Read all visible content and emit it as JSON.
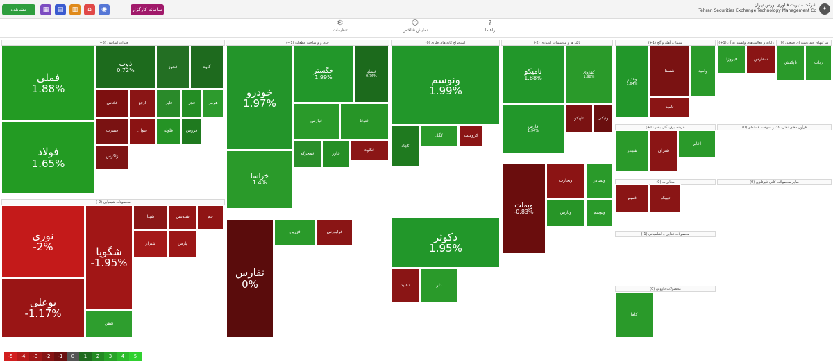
{
  "header": {
    "left_buttons": [
      {
        "label": "مشاهده فهرست",
        "color": "#2e9e3e"
      },
      {
        "label": "سامانه کارگزار",
        "color": "#a0196a"
      }
    ],
    "icons": [
      {
        "name": "grid-icon",
        "glyph": "▦",
        "color": "#7c4cc1"
      },
      {
        "name": "chart-icon",
        "glyph": "▤",
        "color": "#3b5bd0"
      },
      {
        "name": "list-icon",
        "glyph": "▥",
        "color": "#e08a1a"
      },
      {
        "name": "home-icon",
        "glyph": "⌂",
        "color": "#e04848"
      },
      {
        "name": "user-icon",
        "glyph": "◉",
        "color": "#5677d6"
      }
    ],
    "company_fa": "شرکت مدیریت فناوری بورس تهران",
    "company_en": "Tehran Securities Exchange Technology Management Co",
    "subnav": [
      {
        "label": "تنظیمات",
        "icon_name": "settings-icon",
        "glyph": "⚙"
      },
      {
        "label": "نمایش شاخص",
        "icon_name": "people-icon",
        "glyph": "☺"
      },
      {
        "label": "راهنما",
        "icon_name": "help-icon",
        "glyph": "?"
      }
    ]
  },
  "sectors": [
    {
      "name": "فلزات اساسی (5+)"
    },
    {
      "name": "محصولات شیمیایی (2-)"
    },
    {
      "name": "خودرو و ساخت قطعات (1+)"
    },
    {
      "name": "استخراج کانه های فلزی (0)"
    },
    {
      "name": "بانک ها و موسسات اعتباری (2-)"
    },
    {
      "name": "سیمان، آهک و گچ (1+)"
    },
    {
      "name": "رایانه و فعالیت‌های وابسته به آن (1+)"
    },
    {
      "name": "شرکتهای چند رشته ای صنعتی (0)"
    },
    {
      "name": "عرضه برق، گاز، بخار (1+)"
    },
    {
      "name": "فرآورده‌های نفتی، کک و سوخت هسته‌ای (0)"
    },
    {
      "name": "مخابرات (0)"
    },
    {
      "name": "محصولات غذایی و آشامیدنی (1-)"
    },
    {
      "name": "محصولات دارویی (0)"
    },
    {
      "name": "سایر محصولات کانی غیرفلزی (0)"
    }
  ],
  "tiles": [
    {
      "name": "فملی",
      "pct": "1.88%",
      "color": "#239b23"
    },
    {
      "name": "فولاد",
      "pct": "1.65%",
      "color": "#239b23"
    },
    {
      "name": "ذوب",
      "pct": "0.72%",
      "color": "#1d6b1d"
    },
    {
      "name": "فخوز",
      "pct": "",
      "color": "#236f23"
    },
    {
      "name": "کاوه",
      "pct": "",
      "color": "#1e6a1e"
    },
    {
      "name": "فخاس",
      "pct": "",
      "color": "#7d1010"
    },
    {
      "name": "ارفع",
      "pct": "",
      "color": "#8a1515"
    },
    {
      "name": "فایرا",
      "pct": "",
      "color": "#2a8a2a"
    },
    {
      "name": "فجر",
      "pct": "",
      "color": "#248d24"
    },
    {
      "name": "هرمز",
      "pct": "",
      "color": "#2d9b2d"
    },
    {
      "name": "فسرب",
      "pct": "",
      "color": "#7a1212"
    },
    {
      "name": "فنوال",
      "pct": "",
      "color": "#8a1313"
    },
    {
      "name": "فلوله",
      "pct": "",
      "color": "#259325"
    },
    {
      "name": "فروس",
      "pct": "",
      "color": "#1f7a1f"
    },
    {
      "name": "زاگرس",
      "pct": "",
      "color": "#7e1414"
    },
    {
      "name": "نوری",
      "pct": "-2%",
      "color": "#c41a1a"
    },
    {
      "name": "بوعلی",
      "pct": "-1.17%",
      "color": "#9a1515"
    },
    {
      "name": "شگویا",
      "pct": "-1.95%",
      "color": "#a11616"
    },
    {
      "name": "شپنا",
      "pct": "",
      "color": "#8a1717"
    },
    {
      "name": "شپدیس",
      "pct": "",
      "color": "#941616"
    },
    {
      "name": "جم",
      "pct": "",
      "color": "#8f1414"
    },
    {
      "name": "شیراز",
      "pct": "",
      "color": "#a51919"
    },
    {
      "name": "پارس",
      "pct": "",
      "color": "#9b1616"
    },
    {
      "name": "شفن",
      "pct": "",
      "color": "#2e9e2e"
    },
    {
      "name": "خودرو",
      "pct": "1.97%",
      "color": "#23952a"
    },
    {
      "name": "خراسا",
      "pct": "1.4%",
      "color": "#2a9a2a"
    },
    {
      "name": "خگستر",
      "pct": "1.99%",
      "color": "#22972a"
    },
    {
      "name": "خساپا",
      "pct": "0.76%",
      "color": "#1c6a1c"
    },
    {
      "name": "خپارس",
      "pct": "",
      "color": "#2a9a2a"
    },
    {
      "name": "ختوقا",
      "pct": "",
      "color": "#279527"
    },
    {
      "name": "خمحرکه",
      "pct": "",
      "color": "#2b8f2b"
    },
    {
      "name": "خاور",
      "pct": "",
      "color": "#258f25"
    },
    {
      "name": "خکاوه",
      "pct": "",
      "color": "#8b1616"
    },
    {
      "name": "تفارس",
      "pct": "0%",
      "color": "#5a0c0c"
    },
    {
      "name": "فزرین",
      "pct": "",
      "color": "#2a9a2a"
    },
    {
      "name": "فرابورس",
      "pct": "",
      "color": "#8a1515"
    },
    {
      "name": "ونوسم",
      "pct": "1.99%",
      "color": "#22972a"
    },
    {
      "name": "کچاد",
      "pct": "",
      "color": "#1f7a1f"
    },
    {
      "name": "کگل",
      "pct": "",
      "color": "#2a9a2a"
    },
    {
      "name": "کرومیت",
      "pct": "",
      "color": "#8a1515"
    },
    {
      "name": "دکوثر",
      "pct": "1.95%",
      "color": "#22972a"
    },
    {
      "name": "دعبید",
      "pct": "",
      "color": "#8a1515"
    },
    {
      "name": "دلر",
      "pct": "",
      "color": "#2a9a2a"
    },
    {
      "name": "نامیکو",
      "pct": "1.88%",
      "color": "#22972a"
    },
    {
      "name": "کقزوی",
      "pct": "1.98%",
      "color": "#2a9a2a"
    },
    {
      "name": "فارس",
      "pct": "1.94%",
      "color": "#22972a"
    },
    {
      "name": "تاپیکو",
      "pct": "",
      "color": "#7a1212"
    },
    {
      "name": "ونیکی",
      "pct": "",
      "color": "#6a0f0f"
    },
    {
      "name": "وبملت",
      "pct": "-0.83%",
      "color": "#6a0d0d"
    },
    {
      "name": "وتجارت",
      "pct": "",
      "color": "#8b1414"
    },
    {
      "name": "وبصادر",
      "pct": "",
      "color": "#2a9a2a"
    },
    {
      "name": "وپارس",
      "pct": "",
      "color": "#279527"
    },
    {
      "name": "وتوسم",
      "pct": "",
      "color": "#2a9a2a"
    },
    {
      "name": "وغدیر",
      "pct": "1.64%",
      "color": "#22972a"
    },
    {
      "name": "شستا",
      "pct": "",
      "color": "#7a1212"
    },
    {
      "name": "وامید",
      "pct": "",
      "color": "#2a9a2a"
    },
    {
      "name": "ثامید",
      "pct": "",
      "color": "#8a1515"
    },
    {
      "name": "فیروزا",
      "pct": "",
      "color": "#2a9a2a"
    },
    {
      "name": "سفارس",
      "pct": "",
      "color": "#8a1515"
    },
    {
      "name": "تاپکیش",
      "pct": "",
      "color": "#2a9a2a"
    },
    {
      "name": "رتاپ",
      "pct": "",
      "color": "#2a9a2a"
    },
    {
      "name": "شبندر",
      "pct": "",
      "color": "#2a9a2a"
    },
    {
      "name": "شتران",
      "pct": "",
      "color": "#8a1515"
    },
    {
      "name": "اخابر",
      "pct": "",
      "color": "#2a9a2a"
    },
    {
      "name": "غمینو",
      "pct": "",
      "color": "#8a1515"
    },
    {
      "name": "تیپیکو",
      "pct": "",
      "color": "#8a1515"
    },
    {
      "name": "کاما",
      "pct": "",
      "color": "#2a9a2a"
    }
  ],
  "legend": [
    {
      "label": "-5",
      "color": "#d21f1f"
    },
    {
      "label": "-4",
      "color": "#b81b1b"
    },
    {
      "label": "-3",
      "color": "#9e1717"
    },
    {
      "label": "-2",
      "color": "#851313"
    },
    {
      "label": "-1",
      "color": "#6b1010"
    },
    {
      "label": "0",
      "color": "#555555"
    },
    {
      "label": "1",
      "color": "#1f6b1f"
    },
    {
      "label": "2",
      "color": "#238a23"
    },
    {
      "label": "3",
      "color": "#27a327"
    },
    {
      "label": "4",
      "color": "#2bbb2b"
    },
    {
      "label": "5",
      "color": "#30d130"
    }
  ]
}
